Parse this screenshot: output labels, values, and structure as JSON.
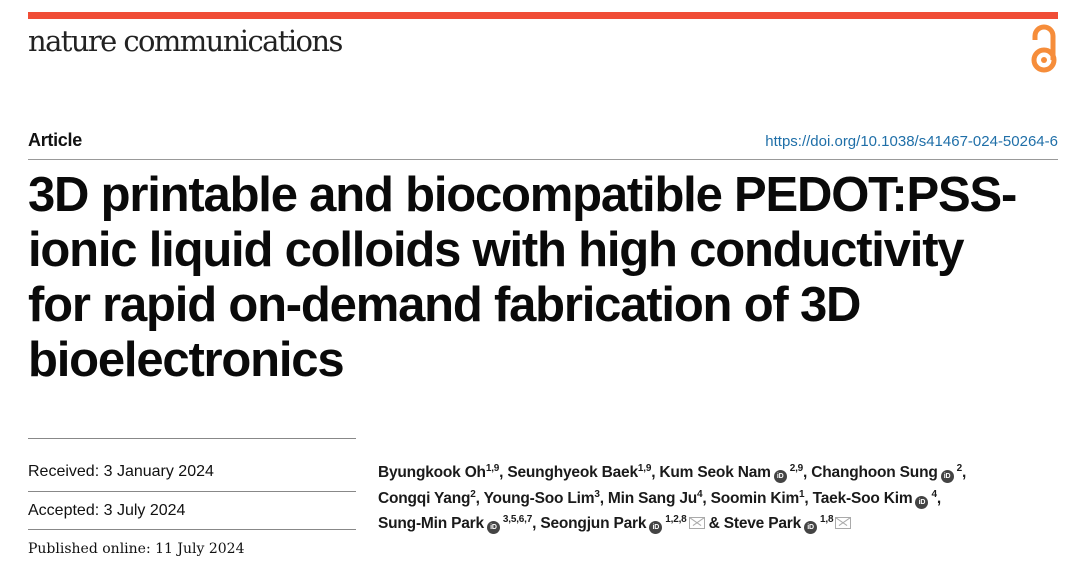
{
  "header": {
    "journal": "nature communications",
    "accent": "#f04d36",
    "open_access_icon": "open-access-icon",
    "oa_color": "#f68d3a"
  },
  "article": {
    "type": "Article",
    "doi": "https://doi.org/10.1038/s41467-024-50264-6",
    "title_lines": [
      "3D printable and biocompatible PEDOT:PSS-",
      "ionic liquid colloids with high conductivity",
      "for rapid on-demand fabrication of 3D",
      "bioelectronics"
    ]
  },
  "history": {
    "received": "Received: 3 January 2024",
    "accepted": "Accepted: 3 July 2024",
    "published": "Published online: 11 July 2024"
  },
  "authors": [
    {
      "name": "Byungkook Oh",
      "aff": "1,9",
      "orcid": false,
      "sep": ", "
    },
    {
      "name": "Seunghyeok Baek",
      "aff": "1,9",
      "orcid": false,
      "sep": ", "
    },
    {
      "name": "Kum Seok Nam",
      "aff": "2,9",
      "orcid": true,
      "sep": ", "
    },
    {
      "name": "Changhoon Sung",
      "aff": "2",
      "orcid": true,
      "sep": ", ",
      "br": true
    },
    {
      "name": "Congqi Yang",
      "aff": "2",
      "orcid": false,
      "sep": ", "
    },
    {
      "name": "Young-Soo Lim",
      "aff": "3",
      "orcid": false,
      "sep": ", "
    },
    {
      "name": "Min Sang Ju",
      "aff": "4",
      "orcid": false,
      "sep": ", "
    },
    {
      "name": "Soomin Kim",
      "aff": "1",
      "orcid": false,
      "sep": ", "
    },
    {
      "name": "Taek-Soo Kim",
      "aff": "4",
      "orcid": true,
      "sep": ", ",
      "br": true
    },
    {
      "name": "Sung-Min Park",
      "aff": "3,5,6,7",
      "orcid": true,
      "sep": ", "
    },
    {
      "name": "Seongjun Park",
      "aff": "1,2,8",
      "orcid": true,
      "mail": true,
      "sep": " & "
    },
    {
      "name": "Steve Park",
      "aff": "1,8",
      "orcid": true,
      "mail": true,
      "sep": ""
    }
  ],
  "orcid_label": "iD"
}
